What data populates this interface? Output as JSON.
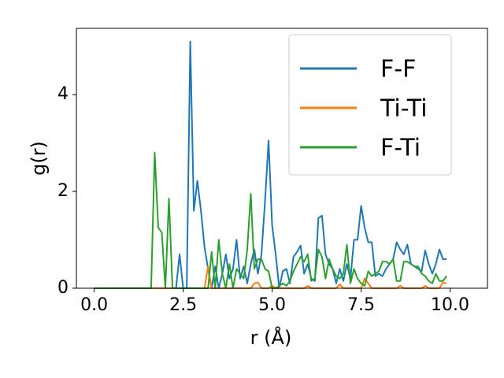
{
  "chart_data": {
    "type": "line",
    "xlabel": "r (Å)",
    "ylabel": "g(r)",
    "x": [
      0,
      0.1,
      0.2,
      0.3,
      0.4,
      0.5,
      0.6,
      0.7,
      0.8,
      0.9,
      1,
      1.1,
      1.2,
      1.3,
      1.4,
      1.5,
      1.6,
      1.7,
      1.8,
      1.9,
      2,
      2.1,
      2.2,
      2.3,
      2.4,
      2.5,
      2.6,
      2.7,
      2.8,
      2.9,
      3,
      3.1,
      3.2,
      3.3,
      3.4,
      3.5,
      3.6,
      3.7,
      3.8,
      3.9,
      4,
      4.1,
      4.2,
      4.3,
      4.4,
      4.5,
      4.6,
      4.7,
      4.8,
      4.9,
      5,
      5.1,
      5.2,
      5.3,
      5.4,
      5.5,
      5.6,
      5.7,
      5.8,
      5.9,
      6,
      6.1,
      6.2,
      6.3,
      6.4,
      6.5,
      6.6,
      6.7,
      6.8,
      6.9,
      7,
      7.1,
      7.2,
      7.3,
      7.4,
      7.5,
      7.6,
      7.7,
      7.8,
      7.9,
      8,
      8.1,
      8.2,
      8.3,
      8.4,
      8.5,
      8.6,
      8.7,
      8.8,
      8.9,
      9,
      9.1,
      9.2,
      9.3,
      9.4,
      9.5,
      9.6,
      9.7,
      9.8,
      9.9
    ],
    "series": [
      {
        "name": "F-F",
        "color": "#1f77b4",
        "values": [
          0,
          0,
          0,
          0,
          0,
          0,
          0,
          0,
          0,
          0,
          0,
          0,
          0,
          0,
          0,
          0,
          0,
          0,
          0,
          0,
          0,
          0,
          0,
          0,
          0.7,
          0,
          0,
          5.1,
          1.6,
          2.22,
          1.6,
          0.85,
          0.4,
          0,
          0.45,
          0,
          0.3,
          0.7,
          0.2,
          0.4,
          1.0,
          0.2,
          0.45,
          0.1,
          0.5,
          0.8,
          0.3,
          0.7,
          1.8,
          3.05,
          1.3,
          0.7,
          0,
          0.35,
          0.4,
          0.1,
          0.65,
          0.75,
          0.88,
          0.3,
          0.5,
          0.2,
          0.15,
          1.45,
          1.5,
          0.7,
          0.5,
          0.4,
          0.1,
          0.4,
          0.15,
          0.5,
          0.2,
          1.0,
          1.0,
          1.7,
          1.25,
          0.95,
          0.95,
          0.25,
          0.3,
          0.25,
          0.4,
          0.5,
          0.6,
          0.95,
          0.8,
          0.7,
          0.9,
          0.5,
          0.45,
          0.4,
          0.35,
          0.78,
          0.5,
          0.3,
          0.5,
          0.8,
          0.6,
          0.6
        ]
      },
      {
        "name": "Ti-Ti",
        "color": "#ff7f0e",
        "values": [
          0,
          0,
          0,
          0,
          0,
          0,
          0,
          0,
          0,
          0,
          0,
          0,
          0,
          0,
          0,
          0,
          0,
          0,
          0,
          0,
          0,
          0,
          0,
          0,
          0,
          0,
          0,
          0,
          0,
          0,
          0,
          0,
          0.45,
          0,
          0,
          0,
          0,
          0,
          0,
          0,
          0,
          0,
          0,
          0,
          0,
          0.1,
          0.12,
          0,
          0,
          0,
          0.05,
          0,
          0,
          0,
          0,
          0,
          0,
          0,
          0,
          0,
          0.05,
          0,
          0,
          0,
          0,
          0,
          0,
          0,
          0,
          0.08,
          0,
          0,
          0,
          0,
          0,
          0,
          0.2,
          0.1,
          0,
          0,
          0,
          0,
          0,
          0,
          0,
          0,
          0.05,
          0,
          0,
          0,
          0,
          0,
          0,
          0.05,
          0,
          0,
          0,
          0,
          0.12,
          0.1
        ]
      },
      {
        "name": "F-Ti",
        "color": "#2ca02c",
        "values": [
          0,
          0,
          0,
          0,
          0,
          0,
          0,
          0,
          0,
          0,
          0,
          0,
          0,
          0,
          0,
          0,
          0,
          2.8,
          1.25,
          1.15,
          0,
          1.85,
          0,
          0,
          0,
          0,
          0,
          0,
          0,
          0,
          0,
          0,
          0,
          0.75,
          0,
          1.0,
          0.3,
          0,
          0.5,
          0,
          0.4,
          0.3,
          0.2,
          0.8,
          1.95,
          0.4,
          0.6,
          0.6,
          0.4,
          0.35,
          0,
          0,
          0.05,
          0.1,
          0.05,
          0.15,
          0.35,
          0.5,
          0.65,
          0.55,
          0.7,
          0.15,
          0.2,
          0.8,
          0.65,
          0.2,
          0.6,
          0.4,
          0.25,
          0.2,
          0.3,
          0.9,
          0.1,
          0.4,
          0.2,
          0.1,
          0.05,
          0.35,
          0.25,
          0.3,
          0.35,
          0.55,
          0.55,
          0.5,
          0.6,
          0.15,
          0.15,
          0.55,
          0.55,
          0.5,
          0.45,
          0.45,
          0.3,
          0.25,
          0.15,
          0.1,
          0.3,
          0.15,
          0.15,
          0.25
        ]
      }
    ],
    "xlim": [
      -0.5,
      11.05
    ],
    "ylim": [
      0,
      5.37
    ],
    "xticks": [
      {
        "value": 0,
        "label": "0.0"
      },
      2.5,
      {
        "value": 5,
        "label": "5.0"
      },
      7.5,
      {
        "value": 10,
        "label": "10.0"
      }
    ],
    "yticks": [
      0,
      2,
      4
    ],
    "legend": "upper right"
  }
}
